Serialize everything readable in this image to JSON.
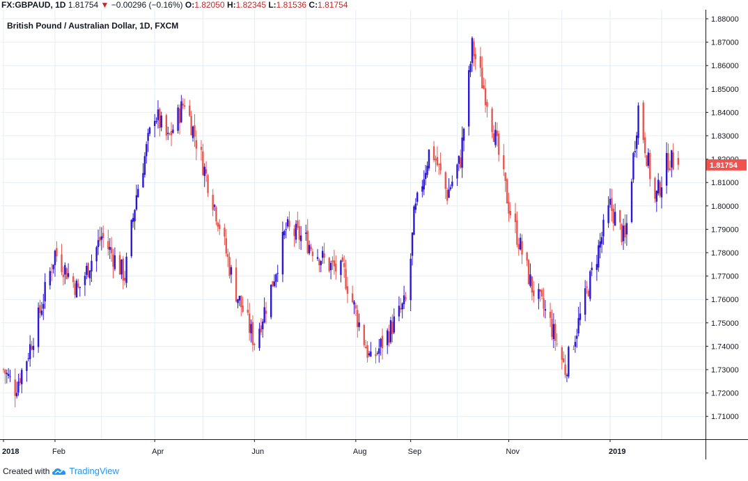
{
  "header": {
    "symbol": "FX:GBPAUD, 1D",
    "last": "1.81754",
    "change_arrow": "▼",
    "change": "−0.00296 (−0.16%)",
    "o_label": "O:",
    "o_value": "1.82050",
    "h_label": "H:",
    "h_value": "1.82345",
    "l_label": "L:",
    "l_value": "1.81536",
    "c_label": "C:",
    "c_value": "1.81754"
  },
  "footer": {
    "created_with": "Created with",
    "brand": "TradingView",
    "logo_icon": "tradingview-cloud-icon"
  },
  "chart_data": {
    "type": "candlestick",
    "title": "British Pound / Australian Dollar, 1D, FXCM",
    "ylim": [
      1.705,
      1.88
    ],
    "y_ticks": [
      "1.71000",
      "1.72000",
      "1.73000",
      "1.74000",
      "1.75000",
      "1.76000",
      "1.77000",
      "1.78000",
      "1.79000",
      "1.80000",
      "1.81000",
      "1.82000",
      "1.83000",
      "1.84000",
      "1.85000",
      "1.86000",
      "1.87000",
      "1.88000"
    ],
    "x_labels": [
      {
        "label": "2018",
        "date": "2018-01-01",
        "bold": true
      },
      {
        "label": "Feb",
        "date": "2018-02-01",
        "bold": false
      },
      {
        "label": "Apr",
        "date": "2018-04-02",
        "bold": false
      },
      {
        "label": "Jun",
        "date": "2018-06-01",
        "bold": false
      },
      {
        "label": "Aug",
        "date": "2018-08-01",
        "bold": false
      },
      {
        "label": "Sep",
        "date": "2018-09-03",
        "bold": false
      },
      {
        "label": "Nov",
        "date": "2018-11-01",
        "bold": false
      },
      {
        "label": "2019",
        "date": "2019-01-01",
        "bold": true
      }
    ],
    "last_price": "1.81754",
    "colors": {
      "up": "#2a17d6",
      "down": "#e8574f",
      "price_tag": "#ef5350",
      "grid": "#e6edf3",
      "axis": "#131722"
    },
    "grid": true,
    "close_path": [
      [
        "2018-01-01",
        1.73
      ],
      [
        "2018-01-08",
        1.722
      ],
      [
        "2018-01-15",
        1.735
      ],
      [
        "2018-01-22",
        1.752
      ],
      [
        "2018-02-01",
        1.78
      ],
      [
        "2018-02-15",
        1.764
      ],
      [
        "2018-03-01",
        1.787
      ],
      [
        "2018-03-15",
        1.77
      ],
      [
        "2018-03-22",
        1.805
      ],
      [
        "2018-04-02",
        1.84
      ],
      [
        "2018-04-10",
        1.828
      ],
      [
        "2018-04-20",
        1.845
      ],
      [
        "2018-05-01",
        1.818
      ],
      [
        "2018-05-10",
        1.795
      ],
      [
        "2018-05-20",
        1.765
      ],
      [
        "2018-06-01",
        1.742
      ],
      [
        "2018-06-10",
        1.762
      ],
      [
        "2018-06-20",
        1.79
      ],
      [
        "2018-07-01",
        1.786
      ],
      [
        "2018-07-15",
        1.775
      ],
      [
        "2018-07-25",
        1.771
      ],
      [
        "2018-08-10",
        1.733
      ],
      [
        "2018-08-20",
        1.745
      ],
      [
        "2018-09-01",
        1.76
      ],
      [
        "2018-09-05",
        1.795
      ],
      [
        "2018-09-15",
        1.826
      ],
      [
        "2018-09-25",
        1.805
      ],
      [
        "2018-10-03",
        1.82
      ],
      [
        "2018-10-10",
        1.868
      ],
      [
        "2018-10-20",
        1.843
      ],
      [
        "2018-11-01",
        1.8
      ],
      [
        "2018-11-15",
        1.765
      ],
      [
        "2018-11-25",
        1.752
      ],
      [
        "2018-12-05",
        1.73
      ],
      [
        "2018-12-15",
        1.755
      ],
      [
        "2019-01-01",
        1.8
      ],
      [
        "2019-01-10",
        1.785
      ],
      [
        "2019-01-18",
        1.842
      ],
      [
        "2019-01-28",
        1.802
      ],
      [
        "2019-02-05",
        1.82
      ],
      [
        "2019-02-11",
        1.8175
      ]
    ]
  }
}
